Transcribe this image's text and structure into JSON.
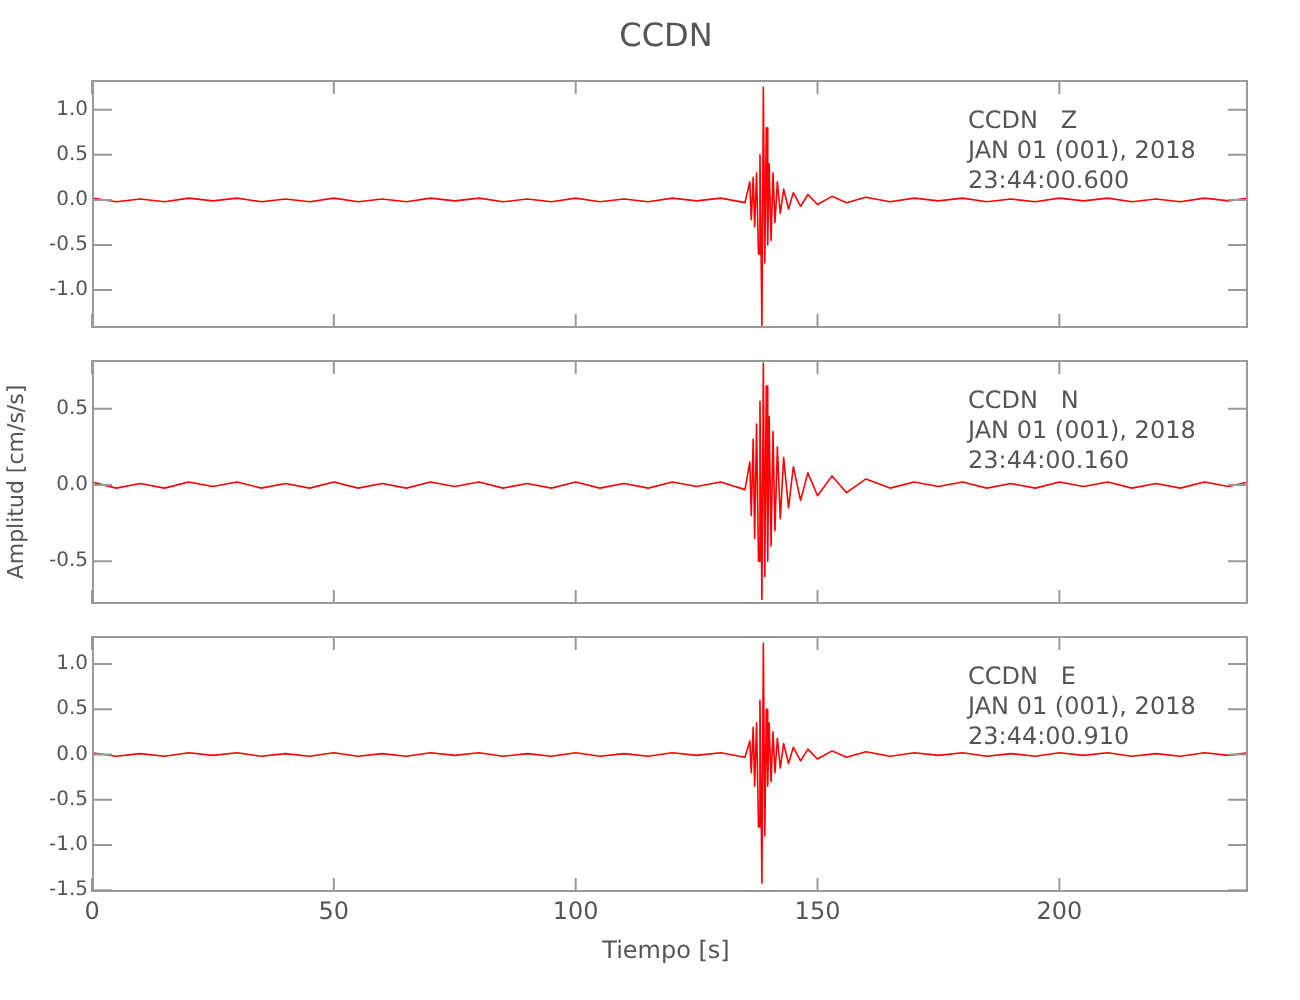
{
  "chart_data": [
    {
      "type": "line",
      "title": "CCDN",
      "marker": "none",
      "tick_labels": "y",
      "annotations": [
        "CCDN   Z",
        "JAN 01 (001), 2018",
        "23:44:00.600"
      ],
      "xlim": [
        0,
        239
      ],
      "xticks": [
        0,
        50,
        100,
        150,
        200
      ],
      "ylim": [
        -1.42,
        1.33
      ],
      "yticks": [
        {
          "value": -1,
          "label": "-1.0"
        },
        -0.5,
        {
          "value": 0,
          "label": "0.0"
        },
        0.5,
        {
          "value": 1,
          "label": "1.0"
        }
      ],
      "series": [
        {
          "color": "#ff0000",
          "x": [
            0,
            5,
            10,
            15,
            20,
            25,
            30,
            35,
            40,
            45,
            50,
            55,
            60,
            65,
            70,
            75,
            80,
            85,
            90,
            95,
            100,
            105,
            110,
            115,
            120,
            125,
            130,
            135,
            136,
            136.3,
            136.7,
            137,
            137.4,
            137.8,
            138.1,
            138.5,
            138.8,
            139.1,
            139.4,
            139.7,
            140,
            140.4,
            140.8,
            141.2,
            141.7,
            142.3,
            143,
            144,
            145,
            146.5,
            148,
            150,
            153,
            156,
            160,
            165,
            170,
            175,
            180,
            185,
            190,
            195,
            200,
            205,
            210,
            215,
            220,
            225,
            230,
            235,
            239
          ],
          "values": [
            0.02,
            -0.02,
            0.01,
            -0.02,
            0.02,
            -0.01,
            0.02,
            -0.02,
            0.01,
            -0.02,
            0.02,
            -0.02,
            0.01,
            -0.02,
            0.02,
            -0.01,
            0.02,
            -0.02,
            0.01,
            -0.02,
            0.02,
            -0.02,
            0.01,
            -0.02,
            0.02,
            -0.01,
            0.02,
            -0.03,
            0.2,
            -0.22,
            0.25,
            -0.3,
            0.3,
            -0.6,
            0.5,
            -1.4,
            1.25,
            -0.7,
            0.8,
            -0.5,
            0.4,
            -0.45,
            0.3,
            -0.25,
            0.2,
            -0.15,
            0.12,
            -0.1,
            0.08,
            -0.07,
            0.06,
            -0.05,
            0.04,
            -0.03,
            0.03,
            -0.02,
            0.02,
            -0.01,
            0.02,
            -0.02,
            0.01,
            -0.02,
            0.02,
            -0.01,
            0.02,
            -0.02,
            0.01,
            -0.02,
            0.02,
            -0.01,
            0.02
          ]
        }
      ]
    },
    {
      "type": "line",
      "ylabel": "Amplitud  [cm/s/s]",
      "marker": "none",
      "tick_labels": "y",
      "annotations": [
        "CCDN   N",
        "JAN 01 (001), 2018",
        "23:44:00.160"
      ],
      "xlim": [
        0,
        239
      ],
      "xticks": [
        0,
        50,
        100,
        150,
        200
      ],
      "ylim": [
        -0.78,
        0.82
      ],
      "yticks": [
        -0.5,
        {
          "value": 0,
          "label": "0.0"
        },
        0.5
      ],
      "series": [
        {
          "color": "#ff0000",
          "x": [
            0,
            5,
            10,
            15,
            20,
            25,
            30,
            35,
            40,
            45,
            50,
            55,
            60,
            65,
            70,
            75,
            80,
            85,
            90,
            95,
            100,
            105,
            110,
            115,
            120,
            125,
            130,
            135,
            136,
            136.3,
            136.7,
            137,
            137.4,
            137.8,
            138.1,
            138.5,
            138.8,
            139.1,
            139.4,
            139.7,
            140,
            140.4,
            140.8,
            141.2,
            141.7,
            142.3,
            143,
            144,
            145,
            146.5,
            148,
            150,
            153,
            156,
            160,
            165,
            170,
            175,
            180,
            185,
            190,
            195,
            200,
            205,
            210,
            215,
            220,
            225,
            230,
            235,
            239
          ],
          "values": [
            0.02,
            -0.02,
            0.01,
            -0.02,
            0.02,
            -0.01,
            0.02,
            -0.02,
            0.01,
            -0.02,
            0.02,
            -0.02,
            0.01,
            -0.02,
            0.02,
            -0.01,
            0.02,
            -0.02,
            0.01,
            -0.02,
            0.02,
            -0.02,
            0.01,
            -0.02,
            0.02,
            -0.01,
            0.02,
            -0.03,
            0.15,
            -0.2,
            0.3,
            -0.35,
            0.4,
            -0.5,
            0.55,
            -0.75,
            0.8,
            -0.6,
            0.65,
            -0.5,
            0.45,
            -0.4,
            0.35,
            -0.3,
            0.25,
            -0.22,
            0.18,
            -0.15,
            0.12,
            -0.1,
            0.08,
            -0.07,
            0.06,
            -0.05,
            0.04,
            -0.02,
            0.02,
            -0.01,
            0.02,
            -0.02,
            0.01,
            -0.02,
            0.02,
            -0.01,
            0.02,
            -0.02,
            0.01,
            -0.02,
            0.02,
            -0.01,
            0.02
          ]
        }
      ]
    },
    {
      "type": "line",
      "xlabel": "Tiempo  [s]",
      "marker": "none",
      "annotations": [
        "CCDN   E",
        "JAN 01 (001), 2018",
        "23:44:00.910"
      ],
      "xlim": [
        0,
        239
      ],
      "xticks": [
        0,
        50,
        100,
        150,
        200
      ],
      "ylim": [
        -1.52,
        1.31
      ],
      "yticks": [
        -1.5,
        {
          "value": -1,
          "label": "-1.0"
        },
        -0.5,
        {
          "value": 0,
          "label": "0.0"
        },
        0.5,
        {
          "value": 1,
          "label": "1.0"
        }
      ],
      "series": [
        {
          "color": "#ff0000",
          "x": [
            0,
            5,
            10,
            15,
            20,
            25,
            30,
            35,
            40,
            45,
            50,
            55,
            60,
            65,
            70,
            75,
            80,
            85,
            90,
            95,
            100,
            105,
            110,
            115,
            120,
            125,
            130,
            135,
            136,
            136.3,
            136.7,
            137,
            137.4,
            137.8,
            138.1,
            138.5,
            138.8,
            139.1,
            139.4,
            139.7,
            140,
            140.4,
            140.8,
            141.2,
            141.7,
            142.3,
            143,
            144,
            145,
            146.5,
            148,
            150,
            153,
            156,
            160,
            165,
            170,
            175,
            180,
            185,
            190,
            195,
            200,
            205,
            210,
            215,
            220,
            225,
            230,
            235,
            239
          ],
          "values": [
            0.02,
            -0.02,
            0.01,
            -0.02,
            0.02,
            -0.01,
            0.02,
            -0.02,
            0.01,
            -0.02,
            0.02,
            -0.02,
            0.01,
            -0.02,
            0.02,
            -0.01,
            0.02,
            -0.02,
            0.01,
            -0.02,
            0.02,
            -0.02,
            0.01,
            -0.02,
            0.02,
            -0.01,
            0.02,
            -0.03,
            0.15,
            -0.2,
            0.3,
            -0.35,
            0.35,
            -0.8,
            0.6,
            -1.42,
            1.23,
            -0.9,
            0.5,
            -0.35,
            0.35,
            -0.3,
            0.25,
            -0.2,
            0.18,
            -0.15,
            0.12,
            -0.1,
            0.08,
            -0.07,
            0.06,
            -0.05,
            0.04,
            -0.03,
            0.03,
            -0.02,
            0.02,
            -0.01,
            0.02,
            -0.02,
            0.01,
            -0.02,
            0.02,
            -0.01,
            0.02,
            -0.02,
            0.01,
            -0.02,
            0.02,
            -0.01,
            0.02
          ]
        }
      ]
    }
  ]
}
